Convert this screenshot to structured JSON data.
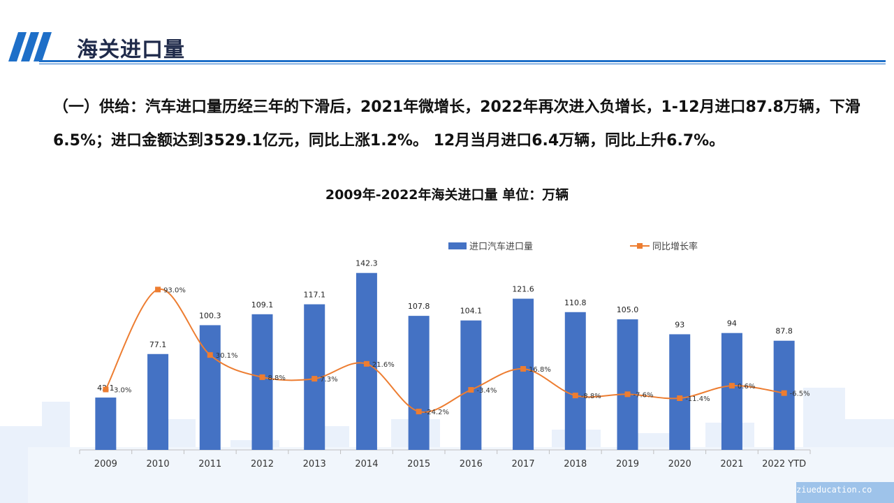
{
  "header": {
    "title": "海关进口量"
  },
  "intro_text": "（一）供给：汽车进口量历经三年的下滑后，2021年微增长，2022年再次进入负增长，1-12月进口87.8万辆，下滑6.5%；进口金额达到3529.1亿元，同比上涨1.2%。 12月当月进口6.4万辆，同比上升6.7%。",
  "watermark": "ziueducation.co",
  "colors": {
    "bar": "#4472c4",
    "line": "#ed7d31",
    "accent": "#1e6fc8"
  },
  "chart_data": {
    "type": "bar",
    "title": "2009年-2022年海关进口量  单位：万辆",
    "categories": [
      "2009",
      "2010",
      "2011",
      "2012",
      "2013",
      "2014",
      "2015",
      "2016",
      "2017",
      "2018",
      "2019",
      "2020",
      "2021",
      "2022 YTD"
    ],
    "series": [
      {
        "name": "进口汽车进口量",
        "type": "bar",
        "values": [
          42.1,
          77.1,
          100.3,
          109.1,
          117.1,
          142.3,
          107.8,
          104.1,
          121.6,
          110.8,
          105.0,
          93,
          94,
          87.8
        ],
        "labels": [
          "42.1",
          "77.1",
          "100.3",
          "109.1",
          "117.1",
          "142.3",
          "107.8",
          "104.1",
          "121.6",
          "110.8",
          "105.0",
          "93",
          "94",
          "87.8"
        ]
      },
      {
        "name": "同比增长率",
        "type": "line",
        "values": [
          -3.0,
          93.0,
          30.1,
          8.8,
          7.3,
          21.6,
          -24.2,
          -3.4,
          16.8,
          -8.8,
          -7.6,
          -11.4,
          0.6,
          -6.5
        ],
        "labels": [
          "-3.0%",
          "93.0%",
          "30.1%",
          "8.8%",
          "7.3%",
          "21.6%",
          "-24.2%",
          "-3.4%",
          "16.8%",
          "-8.8%",
          "-7.6%",
          "-11.4%",
          "0.6%",
          "-6.5%"
        ]
      }
    ],
    "legend": "top",
    "grid": false
  }
}
